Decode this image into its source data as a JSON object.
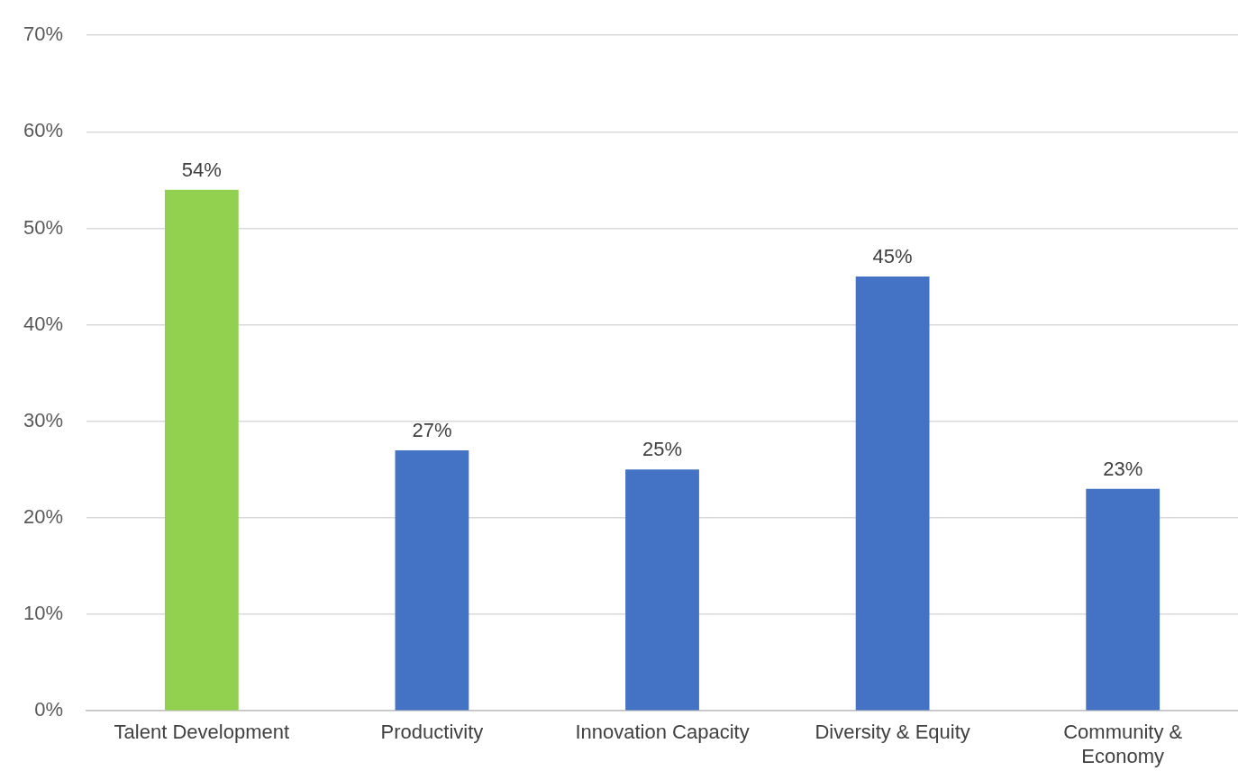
{
  "chart_data": {
    "type": "bar",
    "categories": [
      "Talent Development",
      "Productivity",
      "Innovation Capacity",
      "Diversity & Equity",
      "Community & Economy"
    ],
    "values": [
      54,
      27,
      25,
      45,
      23
    ],
    "colors": [
      "#92d050",
      "#4472c4",
      "#4472c4",
      "#4472c4",
      "#4472c4"
    ],
    "value_labels": [
      "54%",
      "27%",
      "25%",
      "45%",
      "23%"
    ],
    "ylim": [
      0,
      70
    ],
    "yticks": [
      {
        "value": 0,
        "label": "0%"
      },
      {
        "value": 10,
        "label": "10%"
      },
      {
        "value": 20,
        "label": "20%"
      },
      {
        "value": 30,
        "label": "30%"
      },
      {
        "value": 40,
        "label": "40%"
      },
      {
        "value": 50,
        "label": "50%"
      },
      {
        "value": 60,
        "label": "60%"
      },
      {
        "value": 70,
        "label": "70%"
      }
    ],
    "grid": "y",
    "legend": false
  }
}
